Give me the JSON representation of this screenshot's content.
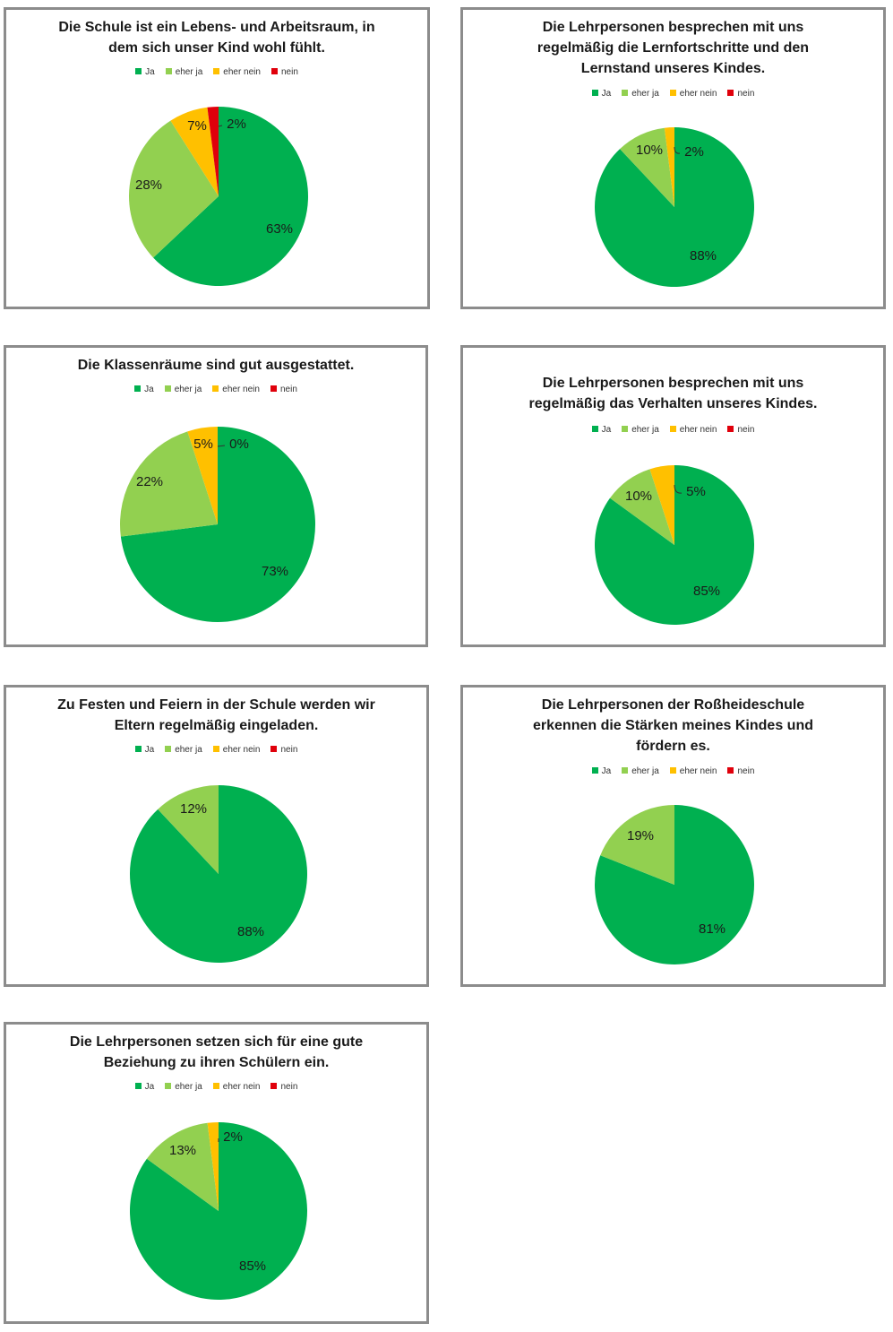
{
  "legend_labels": [
    "Ja",
    "eher ja",
    "eher nein",
    "nein"
  ],
  "colors": [
    "#00b050",
    "#92d050",
    "#ffc000",
    "#e0000b"
  ],
  "chart_data": [
    {
      "type": "pie",
      "title_lines": [
        "Die Schule ist ein Lebens- und Arbeitsraum, in",
        "dem sich unser Kind wohl fühlt."
      ],
      "categories": [
        "Ja",
        "eher ja",
        "eher nein",
        "nein"
      ],
      "values": [
        63,
        28,
        7,
        2
      ],
      "labels": [
        "63%",
        "28%",
        "7%",
        "2%"
      ]
    },
    {
      "type": "pie",
      "title_lines": [
        "Die Lehrpersonen besprechen mit uns",
        "regelmäßig die Lernfortschritte und den",
        "Lernstand unseres Kindes."
      ],
      "categories": [
        "Ja",
        "eher ja",
        "eher nein",
        "nein"
      ],
      "values": [
        88,
        10,
        2,
        0
      ],
      "labels": [
        "88%",
        "10%",
        "2%",
        ""
      ]
    },
    {
      "type": "pie",
      "title_lines": [
        "Die Klassenräume sind gut ausgestattet."
      ],
      "categories": [
        "Ja",
        "eher ja",
        "eher nein",
        "nein"
      ],
      "values": [
        73,
        22,
        5,
        0
      ],
      "labels": [
        "73%",
        "22%",
        "5%",
        "0%"
      ]
    },
    {
      "type": "pie",
      "title_lines": [
        "Die Lehrpersonen besprechen mit uns",
        "regelmäßig das Verhalten unseres Kindes."
      ],
      "categories": [
        "Ja",
        "eher ja",
        "eher nein",
        "nein"
      ],
      "values": [
        85,
        10,
        5,
        0
      ],
      "labels": [
        "85%",
        "10%",
        "5%",
        ""
      ]
    },
    {
      "type": "pie",
      "title_lines": [
        "Zu Festen und Feiern in der Schule werden wir",
        "Eltern regelmäßig eingeladen."
      ],
      "categories": [
        "Ja",
        "eher ja",
        "eher nein",
        "nein"
      ],
      "values": [
        88,
        12,
        0,
        0
      ],
      "labels": [
        "88%",
        "12%",
        "",
        ""
      ]
    },
    {
      "type": "pie",
      "title_lines": [
        "Die Lehrpersonen der Roßheideschule",
        "erkennen die Stärken meines Kindes und",
        "fördern es."
      ],
      "categories": [
        "Ja",
        "eher ja",
        "eher nein",
        "nein"
      ],
      "values": [
        81,
        19,
        0,
        0
      ],
      "labels": [
        "81%",
        "19%",
        "",
        ""
      ]
    },
    {
      "type": "pie",
      "title_lines": [
        "Die Lehrpersonen setzen sich für eine gute",
        "Beziehung zu ihren Schülern ein."
      ],
      "categories": [
        "Ja",
        "eher ja",
        "eher nein",
        "nein"
      ],
      "values": [
        85,
        13,
        2,
        0
      ],
      "labels": [
        "85%",
        "13%",
        "2%",
        ""
      ]
    }
  ]
}
